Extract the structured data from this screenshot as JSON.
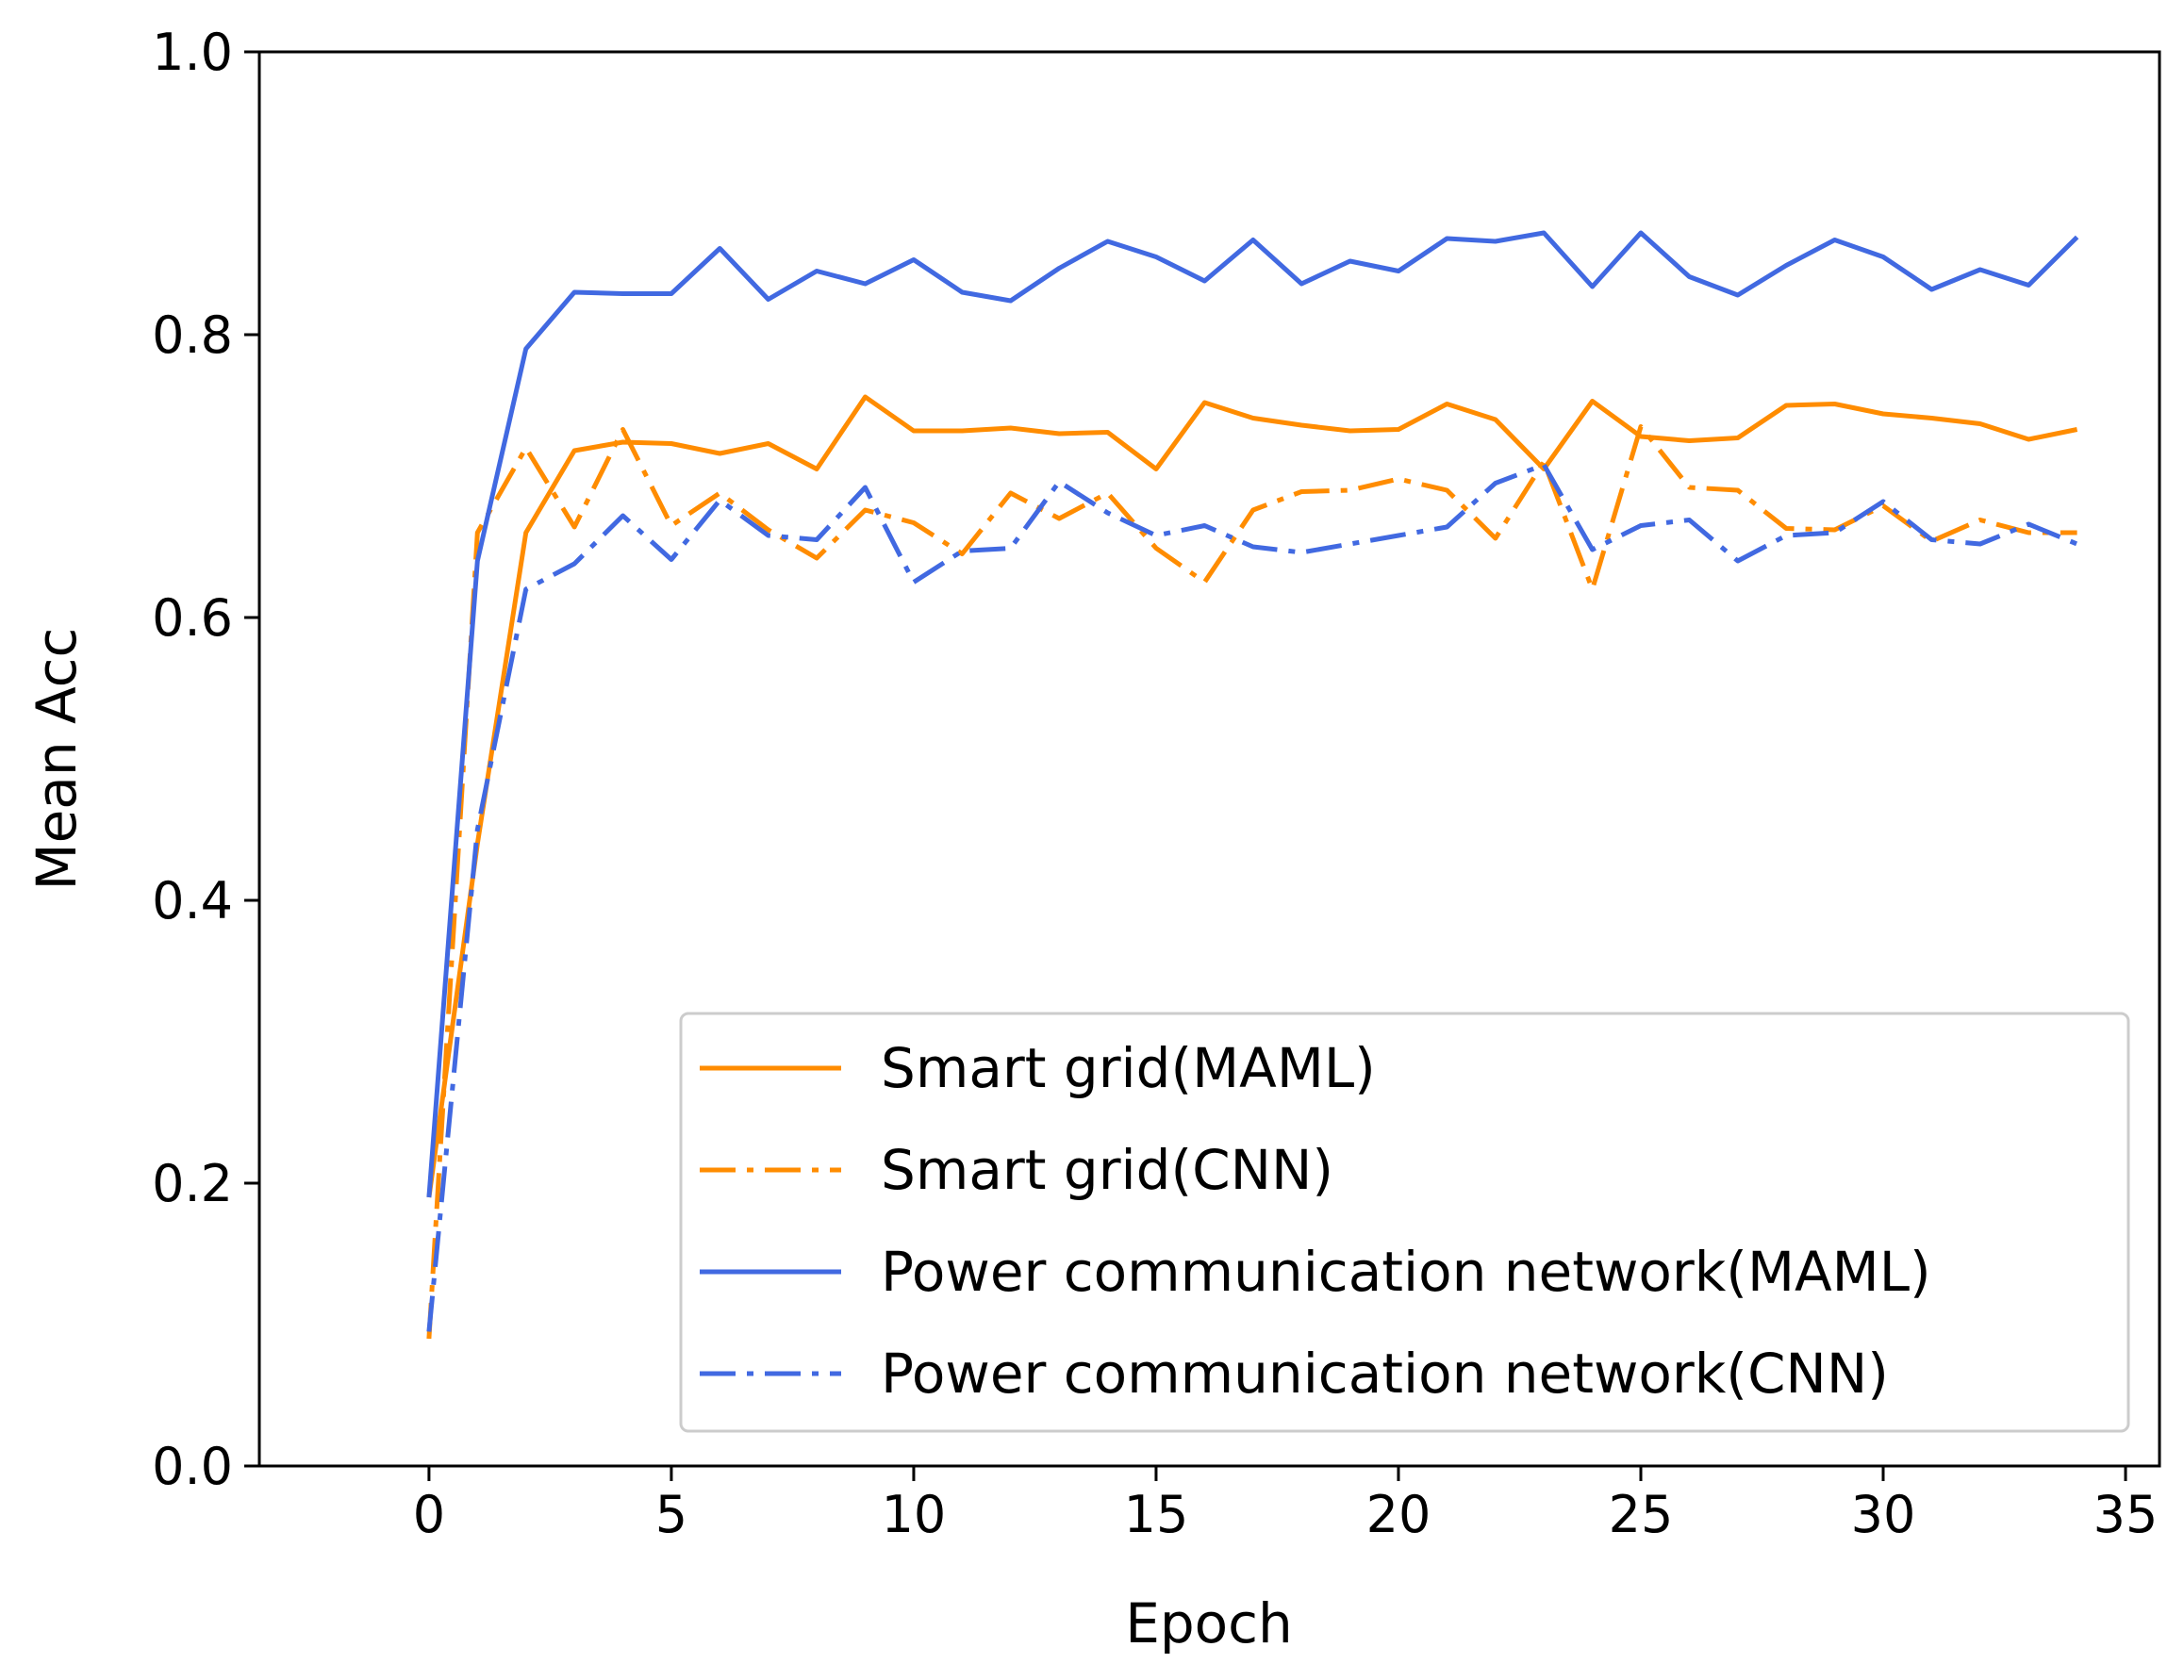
{
  "chart_data": {
    "type": "line",
    "title": "",
    "xlabel": "Epoch",
    "ylabel": "Mean Acc",
    "xlim": [
      -3.5,
      35.7
    ],
    "ylim": [
      0.0,
      1.0
    ],
    "xticks": [
      0,
      5,
      10,
      15,
      20,
      25,
      30,
      35
    ],
    "xtick_labels": [
      "0",
      "5",
      "10",
      "15",
      "20",
      "25",
      "30",
      "35"
    ],
    "yticks": [
      0.0,
      0.2,
      0.4,
      0.6,
      0.8,
      1.0
    ],
    "ytick_labels": [
      "0.0",
      "0.2",
      "0.4",
      "0.6",
      "0.8",
      "1.0"
    ],
    "grid": false,
    "legend_position": "lower-right",
    "x": [
      0,
      1,
      2,
      3,
      4,
      5,
      6,
      7,
      8,
      9,
      10,
      11,
      12,
      13,
      14,
      15,
      16,
      17,
      18,
      19,
      20,
      21,
      22,
      23,
      24,
      25,
      26,
      27,
      28,
      29,
      30,
      31,
      32,
      33,
      34
    ],
    "series": [
      {
        "name": "Smart grid(MAML)",
        "color": "#ff8c00",
        "style": "solid",
        "values": [
          0.19,
          0.44,
          0.66,
          0.718,
          0.724,
          0.723,
          0.716,
          0.723,
          0.705,
          0.756,
          0.732,
          0.732,
          0.734,
          0.73,
          0.731,
          0.705,
          0.752,
          0.741,
          0.736,
          0.732,
          0.733,
          0.751,
          0.74,
          0.705,
          0.753,
          0.728,
          0.725,
          0.727,
          0.75,
          0.751,
          0.744,
          0.741,
          0.737,
          0.726,
          0.733
        ]
      },
      {
        "name": "Smart grid(CNN)",
        "color": "#ff8c00",
        "style": "dashdot",
        "values": [
          0.09,
          0.66,
          0.72,
          0.664,
          0.733,
          0.665,
          0.688,
          0.662,
          0.642,
          0.676,
          0.667,
          0.645,
          0.688,
          0.67,
          0.688,
          0.649,
          0.625,
          0.676,
          0.689,
          0.69,
          0.698,
          0.69,
          0.656,
          0.71,
          0.62,
          0.735,
          0.692,
          0.69,
          0.663,
          0.662,
          0.679,
          0.654,
          0.669,
          0.66,
          0.66
        ]
      },
      {
        "name": "Power communication network(MAML)",
        "color": "#4169e1",
        "style": "solid",
        "values": [
          0.19,
          0.64,
          0.79,
          0.83,
          0.829,
          0.829,
          0.861,
          0.825,
          0.845,
          0.836,
          0.853,
          0.83,
          0.824,
          0.847,
          0.866,
          0.855,
          0.838,
          0.867,
          0.836,
          0.852,
          0.845,
          0.868,
          0.866,
          0.872,
          0.834,
          0.872,
          0.841,
          0.828,
          0.849,
          0.867,
          0.855,
          0.832,
          0.846,
          0.835,
          0.869
        ]
      },
      {
        "name": "Power communication network(CNN)",
        "color": "#4169e1",
        "style": "dashdot",
        "values": [
          0.095,
          0.45,
          0.62,
          0.638,
          0.672,
          0.641,
          0.683,
          0.658,
          0.655,
          0.692,
          0.625,
          0.647,
          0.649,
          0.696,
          0.674,
          0.658,
          0.665,
          0.65,
          0.646,
          0.652,
          0.658,
          0.664,
          0.695,
          0.708,
          0.648,
          0.665,
          0.669,
          0.64,
          0.658,
          0.66,
          0.682,
          0.655,
          0.652,
          0.666,
          0.652
        ]
      }
    ]
  }
}
